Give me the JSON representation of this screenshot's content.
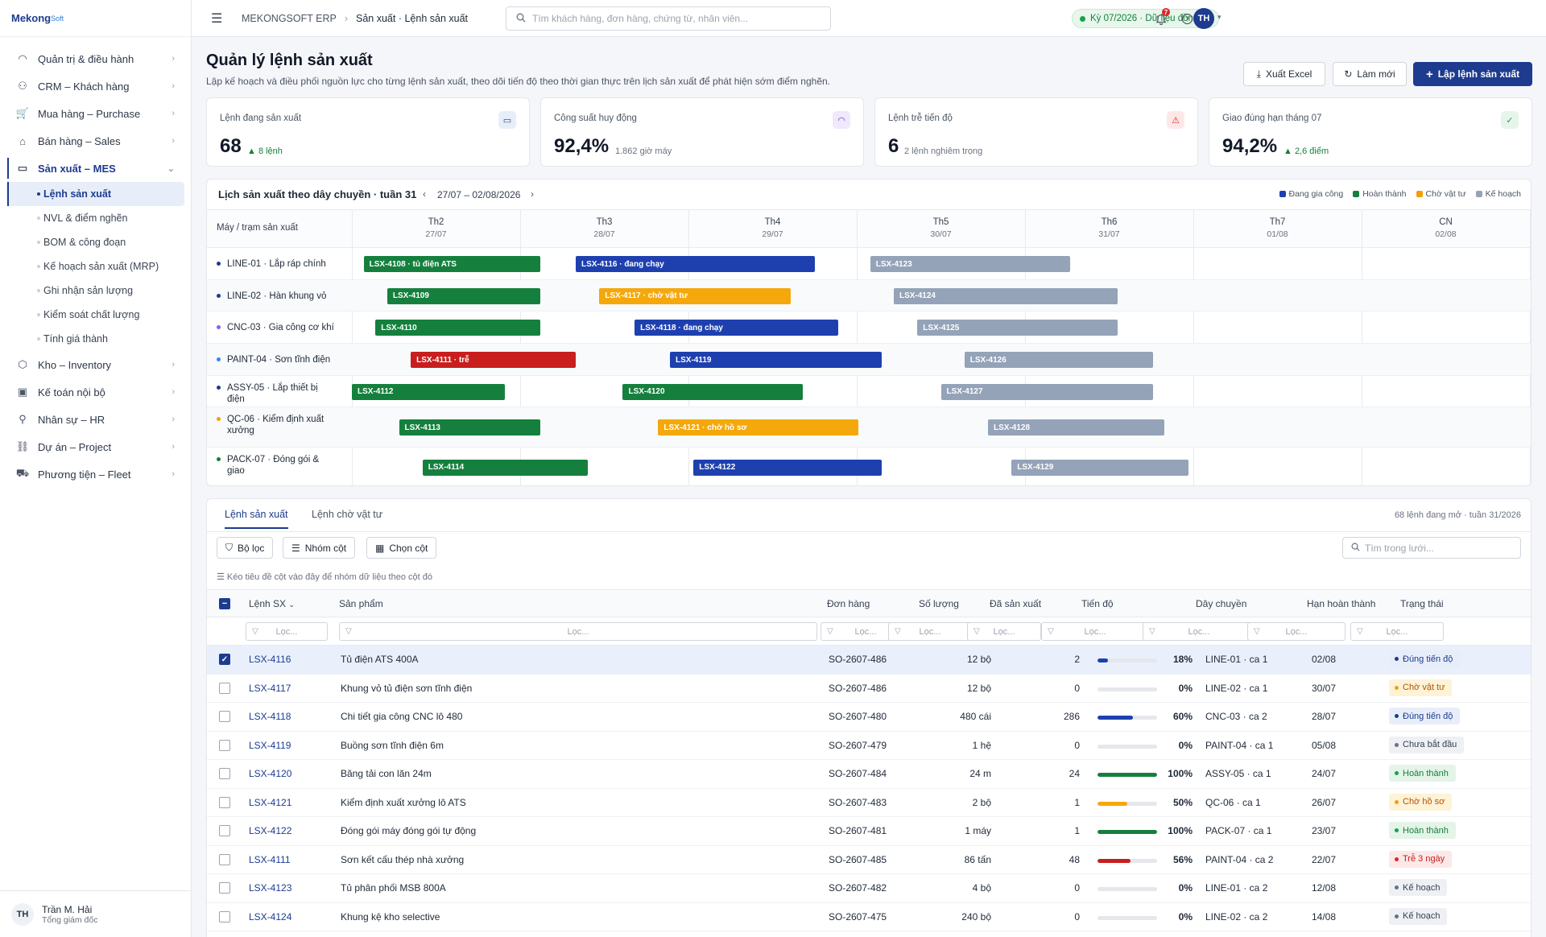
{
  "brand": {
    "name_a": "Mekong",
    "name_b": "Soft"
  },
  "sidebar": {
    "items": [
      {
        "label": "Quản trị & điều hành",
        "icon": "gauge-icon"
      },
      {
        "label": "CRM – Khách hàng",
        "icon": "users-icon"
      },
      {
        "label": "Mua hàng – Purchase",
        "icon": "cart-icon"
      },
      {
        "label": "Bán hàng – Sales",
        "icon": "store-icon"
      },
      {
        "label": "Sản xuất – MES",
        "icon": "factory-icon",
        "active": true
      },
      {
        "label": "Kho – Inventory",
        "icon": "box-icon"
      },
      {
        "label": "Kế toán nội bộ",
        "icon": "money-icon"
      },
      {
        "label": "Nhân sự – HR",
        "icon": "person-icon"
      },
      {
        "label": "Dự án – Project",
        "icon": "project-icon"
      },
      {
        "label": "Phương tiện – Fleet",
        "icon": "truck-icon"
      }
    ],
    "sub_items": [
      "Lệnh sản xuất",
      "NVL & điểm nghẽn",
      "BOM & công đoạn",
      "Kế hoạch sản xuất (MRP)",
      "Ghi nhận sản lượng",
      "Kiểm soát chất lượng",
      "Tính giá thành"
    ],
    "user": {
      "initials": "TH",
      "name": "Trần M. Hải",
      "role": "Tổng giám đốc"
    }
  },
  "topbar": {
    "breadcrumb": [
      "MEKONGSOFT ERP",
      "Sản xuất · Lệnh sản xuất"
    ],
    "search_placeholder": "Tìm khách hàng, đơn hàng, chứng từ, nhân viên...",
    "period": "Kỳ 07/2026 · Dữ liệu đồng bộ",
    "notif_count": "7",
    "avatar": "TH"
  },
  "page": {
    "title": "Quản lý lệnh sản xuất",
    "subtitle": "Lập kế hoạch và điều phối nguồn lực cho từng lệnh sản xuất, theo dõi tiến độ theo thời gian thực trên lịch sản xuất để phát hiện sớm điểm nghẽn.",
    "actions": {
      "export": "Xuất Excel",
      "refresh": "Làm mới",
      "create": "Lập lệnh sản xuất"
    }
  },
  "kpis": [
    {
      "label": "Lệnh đang sản xuất",
      "value": "68",
      "sub": "▲ 8 lệnh",
      "sub_color": "#15803d",
      "icon": "factory-icon",
      "icon_bg": "#e8eef9",
      "icon_color": "#1d3b8f"
    },
    {
      "label": "Công suất huy động",
      "value": "92,4%",
      "sub": "1.862 giờ máy",
      "sub_color": "#6b7280",
      "icon": "gauge-icon",
      "icon_bg": "#efe9fb",
      "icon_color": "#6d28d9"
    },
    {
      "label": "Lệnh trễ tiến độ",
      "value": "6",
      "sub": "2 lệnh nghiêm trọng",
      "sub_color": "#6b7280",
      "icon": "warning-icon",
      "icon_bg": "#fde8e8",
      "icon_color": "#dc2626"
    },
    {
      "label": "Giao đúng hạn tháng 07",
      "value": "94,2%",
      "sub": "▲ 2,6 điểm",
      "sub_color": "#15803d",
      "icon": "check-icon",
      "icon_bg": "#e6f5ea",
      "icon_color": "#16a34a"
    }
  ],
  "gantt": {
    "title": "Lịch sản xuất theo dây chuyền · tuần 31",
    "range": "27/07 – 02/08/2026",
    "row_header": "Máy / trạm sản xuất",
    "legend": [
      {
        "label": "Đang gia công",
        "color": "#1e40af"
      },
      {
        "label": "Hoàn thành",
        "color": "#15803d"
      },
      {
        "label": "Chờ vật tư",
        "color": "#f59e0b"
      },
      {
        "label": "Kế hoạch",
        "color": "#94a3b8"
      }
    ],
    "days": [
      {
        "d": "Th2",
        "date": "27/07"
      },
      {
        "d": "Th3",
        "date": "28/07"
      },
      {
        "d": "Th4",
        "date": "29/07"
      },
      {
        "d": "Th5",
        "date": "30/07"
      },
      {
        "d": "Th6",
        "date": "31/07"
      },
      {
        "d": "Th7",
        "date": "01/08"
      },
      {
        "d": "CN",
        "date": "02/08"
      }
    ],
    "rows": [
      {
        "line": "LINE-01 · Lắp ráp chính",
        "dot": "#1e3a8a",
        "bars": [
          {
            "label": "LSX-4108 · tủ điện ATS",
            "status": "done",
            "start": 0.07,
            "end": 1.12
          },
          {
            "label": "LSX-4116 · đang chạy",
            "status": "running",
            "start": 1.33,
            "end": 2.75
          },
          {
            "label": "LSX-4123",
            "status": "plan",
            "start": 3.08,
            "end": 4.27
          }
        ]
      },
      {
        "line": "LINE-02 · Hàn khung vỏ",
        "dot": "#1e3a8a",
        "bars": [
          {
            "label": "LSX-4109",
            "status": "done",
            "start": 0.21,
            "end": 1.12
          },
          {
            "label": "LSX-4117 · chờ vật tư",
            "status": "waiting",
            "start": 1.47,
            "end": 2.61
          },
          {
            "label": "LSX-4124",
            "status": "plan",
            "start": 3.22,
            "end": 4.55
          }
        ]
      },
      {
        "line": "CNC-03 · Gia công cơ khí",
        "dot": "#8b5cf6",
        "bars": [
          {
            "label": "LSX-4110",
            "status": "done",
            "start": 0.14,
            "end": 1.12
          },
          {
            "label": "LSX-4118 · đang chạy",
            "status": "running",
            "start": 1.68,
            "end": 2.89
          },
          {
            "label": "LSX-4125",
            "status": "plan",
            "start": 3.36,
            "end": 4.55
          }
        ]
      },
      {
        "line": "PAINT-04 · Sơn tĩnh điện",
        "dot": "#3b82f6",
        "bars": [
          {
            "label": "LSX-4111 · trễ",
            "status": "late",
            "start": 0.35,
            "end": 1.33
          },
          {
            "label": "LSX-4119",
            "status": "running",
            "start": 1.89,
            "end": 3.15
          },
          {
            "label": "LSX-4126",
            "status": "plan",
            "start": 3.64,
            "end": 4.76
          }
        ]
      },
      {
        "line": "ASSY-05 · Lắp thiết bị điện",
        "dot": "#1e3a8a",
        "bars": [
          {
            "label": "LSX-4112",
            "status": "done",
            "start": 0.0,
            "end": 0.91
          },
          {
            "label": "LSX-4120",
            "status": "done",
            "start": 1.61,
            "end": 2.68
          },
          {
            "label": "LSX-4127",
            "status": "plan",
            "start": 3.5,
            "end": 4.76
          }
        ]
      },
      {
        "line": "QC-06 · Kiểm định xuất xưởng",
        "dot": "#f59e0b",
        "bars": [
          {
            "label": "LSX-4113",
            "status": "done",
            "start": 0.28,
            "end": 1.12
          },
          {
            "label": "LSX-4121 · chờ hồ sơ",
            "status": "waiting",
            "start": 1.82,
            "end": 3.01
          },
          {
            "label": "LSX-4128",
            "status": "plan",
            "start": 3.78,
            "end": 4.83
          }
        ]
      },
      {
        "line": "PACK-07 · Đóng gói & giao",
        "dot": "#15803d",
        "bars": [
          {
            "label": "LSX-4114",
            "status": "done",
            "start": 0.42,
            "end": 1.4
          },
          {
            "label": "LSX-4122",
            "status": "running",
            "start": 2.03,
            "end": 3.15
          },
          {
            "label": "LSX-4129",
            "status": "plan",
            "start": 3.92,
            "end": 4.97
          }
        ]
      }
    ]
  },
  "grid": {
    "tabs": [
      "Lệnh sản xuất",
      "Lệnh chờ vật tư"
    ],
    "count_text": "68 lệnh đang mở · tuần 31/2026",
    "toolbar": {
      "filter": "Bộ lọc",
      "group": "Nhóm cột",
      "columns": "Chọn cột",
      "search_placeholder": "Tìm trong lưới..."
    },
    "group_hint": "Kéo tiêu đề cột vào đây để nhóm dữ liệu theo cột đó",
    "filter_placeholder": "Lọc...",
    "columns": [
      "Lệnh SX",
      "Sản phẩm",
      "Đơn hàng",
      "Số lượng",
      "Đã sản xuất",
      "Tiến độ",
      "Dây chuyền",
      "Hạn hoàn thành",
      "Trạng thái"
    ],
    "rows": [
      {
        "id": "LSX-4116",
        "product": "Tủ điện ATS 400A",
        "order": "SO-2607-486",
        "qty": "12 bộ",
        "done": "2",
        "progress": 18,
        "pct": "18%",
        "line": "LINE-01 · ca 1",
        "due": "02/08",
        "status": "Đúng tiến độ",
        "type": "ok",
        "selected": true
      },
      {
        "id": "LSX-4117",
        "product": "Khung vỏ tủ điện sơn tĩnh điện",
        "order": "SO-2607-486",
        "qty": "12 bộ",
        "done": "0",
        "progress": 0,
        "pct": "0%",
        "line": "LINE-02 · ca 1",
        "due": "30/07",
        "status": "Chờ vật tư",
        "type": "wait"
      },
      {
        "id": "LSX-4118",
        "product": "Chi tiết gia công CNC lô 480",
        "order": "SO-2607-480",
        "qty": "480 cái",
        "done": "286",
        "progress": 60,
        "pct": "60%",
        "line": "CNC-03 · ca 2",
        "due": "28/07",
        "status": "Đúng tiến độ",
        "type": "ok"
      },
      {
        "id": "LSX-4119",
        "product": "Buồng sơn tĩnh điện 6m",
        "order": "SO-2607-479",
        "qty": "1 hệ",
        "done": "0",
        "progress": 0,
        "pct": "0%",
        "line": "PAINT-04 · ca 1",
        "due": "05/08",
        "status": "Chưa bắt đầu",
        "type": "none"
      },
      {
        "id": "LSX-4120",
        "product": "Băng tải con lăn 24m",
        "order": "SO-2607-484",
        "qty": "24 m",
        "done": "24",
        "progress": 100,
        "pct": "100%",
        "line": "ASSY-05 · ca 1",
        "due": "24/07",
        "status": "Hoàn thành",
        "type": "done"
      },
      {
        "id": "LSX-4121",
        "product": "Kiểm định xuất xưởng lô ATS",
        "order": "SO-2607-483",
        "qty": "2 bộ",
        "done": "1",
        "progress": 50,
        "pct": "50%",
        "line": "QC-06 · ca 1",
        "due": "26/07",
        "status": "Chờ hồ sơ",
        "type": "wait"
      },
      {
        "id": "LSX-4122",
        "product": "Đóng gói máy đóng gói tự động",
        "order": "SO-2607-481",
        "qty": "1 máy",
        "done": "1",
        "progress": 100,
        "pct": "100%",
        "line": "PACK-07 · ca 1",
        "due": "23/07",
        "status": "Hoàn thành",
        "type": "done"
      },
      {
        "id": "LSX-4111",
        "product": "Sơn kết cấu thép nhà xưởng",
        "order": "SO-2607-485",
        "qty": "86 tấn",
        "done": "48",
        "progress": 56,
        "pct": "56%",
        "line": "PAINT-04 · ca 2",
        "due": "22/07",
        "status": "Trễ 3 ngày",
        "type": "late"
      },
      {
        "id": "LSX-4123",
        "product": "Tủ phân phối MSB 800A",
        "order": "SO-2607-482",
        "qty": "4 bộ",
        "done": "0",
        "progress": 0,
        "pct": "0%",
        "line": "LINE-01 · ca 2",
        "due": "12/08",
        "status": "Kế hoạch",
        "type": "plan"
      },
      {
        "id": "LSX-4124",
        "product": "Khung kệ kho selective",
        "order": "SO-2607-475",
        "qty": "240 bộ",
        "done": "0",
        "progress": 0,
        "pct": "0%",
        "line": "LINE-02 · ca 2",
        "due": "14/08",
        "status": "Kế hoạch",
        "type": "plan"
      }
    ]
  },
  "colors": {
    "running": "#1e40af",
    "done": "#15803d",
    "waiting": "#f5a80c",
    "plan": "#94a3b8",
    "late": "#c81e1e",
    "accent": "#1d3b8f"
  }
}
